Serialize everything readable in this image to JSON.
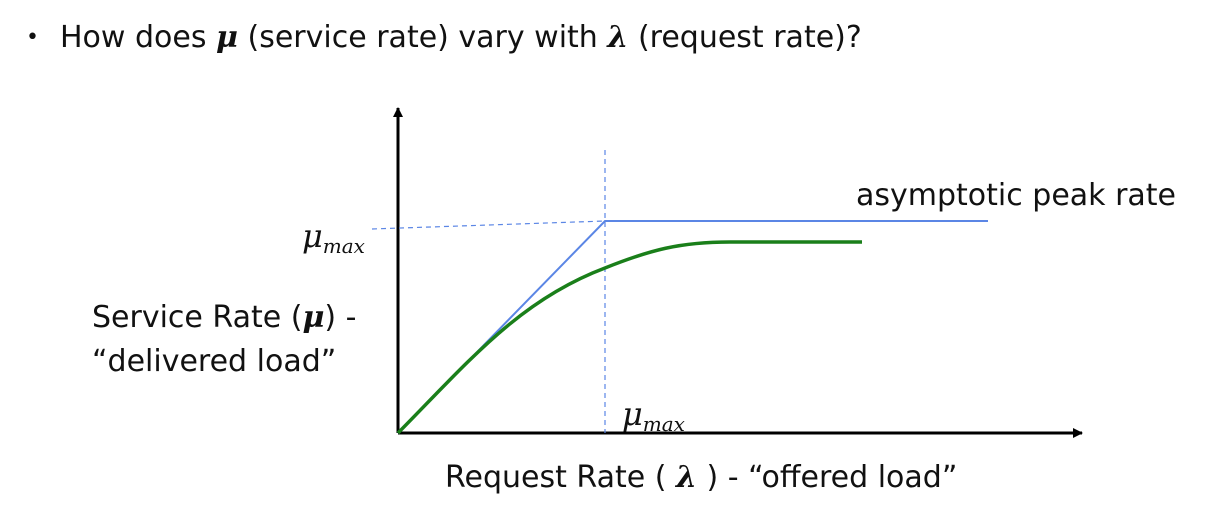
{
  "bullet": {
    "prefix": "How does ",
    "mu_symbol": "μ",
    "middle": " (service rate) vary with ",
    "lambda_symbol": "λ",
    "suffix": " (request rate)?"
  },
  "diagram": {
    "y_axis_label_line1": "Service Rate (",
    "y_axis_label_mu": "μ",
    "y_axis_label_line1_end": ") -",
    "y_axis_label_line2": "“delivered load”",
    "x_axis_label_start": "Request Rate ( ",
    "x_axis_label_lambda": "λ",
    "x_axis_label_end": " ) - “offered load”",
    "y_marker_mu": "μ",
    "y_marker_sub": "max",
    "x_marker_mu": "μ",
    "x_marker_sub": "max",
    "asymptote_label": "asymptotic peak rate",
    "colors": {
      "axes": "#000000",
      "ideal": "#5b86e5",
      "actual": "#1a7f1a",
      "guides": "#5b86e5"
    }
  }
}
